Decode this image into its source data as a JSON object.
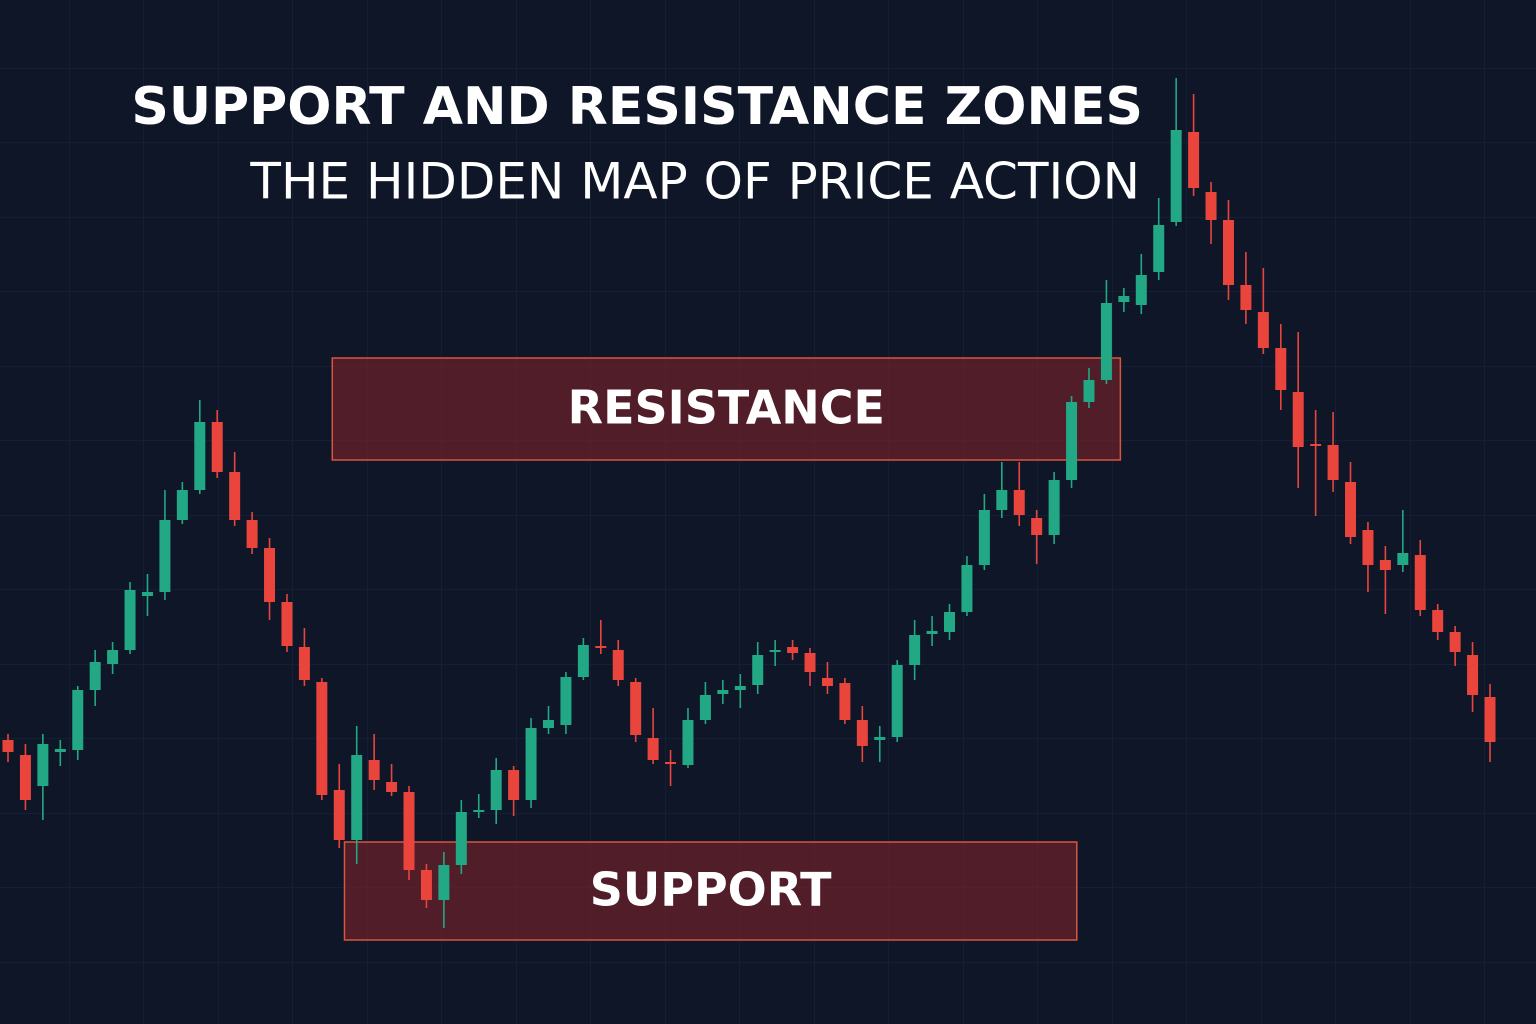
{
  "chart_data": {
    "type": "candlestick",
    "title": "SUPPORT AND RESISTANCE ZONES",
    "subtitle": "THE HIDDEN MAP OF PRICE ACTION",
    "up_color": "#22a884",
    "down_color": "#e9453d",
    "ylim": [
      0,
      1024
    ],
    "open": [
      284,
      269,
      238,
      272,
      274,
      334,
      360,
      374,
      428,
      432,
      504,
      534,
      602,
      552,
      504,
      476,
      422,
      377,
      342,
      234,
      184,
      264,
      242,
      232,
      154,
      124,
      159,
      212,
      214,
      254,
      224,
      296,
      299,
      347,
      378,
      374,
      342,
      286,
      262,
      259,
      304,
      330,
      334,
      339,
      372,
      377,
      371,
      346,
      341,
      304,
      284,
      287,
      359,
      390,
      392,
      412,
      459,
      514,
      534,
      506,
      489,
      544,
      622,
      644,
      722,
      719,
      752,
      802,
      892,
      832,
      804,
      739,
      712,
      676,
      632,
      580,
      579,
      542,
      494,
      464,
      459,
      469,
      414,
      392,
      369,
      327
    ],
    "high": [
      290,
      280,
      290,
      284,
      338,
      374,
      382,
      442,
      450,
      534,
      542,
      624,
      614,
      572,
      512,
      486,
      430,
      396,
      346,
      260,
      298,
      290,
      260,
      238,
      160,
      172,
      224,
      230,
      266,
      258,
      306,
      318,
      352,
      386,
      404,
      384,
      346,
      316,
      274,
      316,
      342,
      344,
      350,
      382,
      384,
      384,
      376,
      362,
      346,
      318,
      298,
      364,
      404,
      408,
      420,
      468,
      530,
      562,
      562,
      514,
      552,
      628,
      656,
      744,
      736,
      770,
      826,
      946,
      930,
      842,
      824,
      772,
      756,
      700,
      692,
      614,
      612,
      562,
      502,
      478,
      514,
      484,
      420,
      398,
      382,
      340
    ],
    "low": [
      262,
      214,
      204,
      258,
      264,
      318,
      350,
      370,
      408,
      424,
      500,
      530,
      546,
      498,
      470,
      404,
      372,
      338,
      224,
      176,
      160,
      234,
      228,
      144,
      116,
      96,
      150,
      206,
      200,
      208,
      216,
      290,
      290,
      344,
      370,
      338,
      282,
      260,
      238,
      256,
      300,
      320,
      316,
      330,
      358,
      364,
      338,
      330,
      300,
      262,
      262,
      282,
      344,
      378,
      384,
      408,
      454,
      506,
      498,
      460,
      480,
      536,
      616,
      640,
      712,
      710,
      744,
      798,
      828,
      780,
      724,
      700,
      670,
      614,
      536,
      508,
      532,
      480,
      432,
      410,
      452,
      408,
      384,
      358,
      312,
      262
    ],
    "close": [
      272,
      224,
      280,
      275,
      334,
      362,
      374,
      434,
      432,
      504,
      534,
      602,
      552,
      504,
      476,
      422,
      378,
      344,
      229,
      184,
      269,
      244,
      232,
      154,
      124,
      159,
      212,
      214,
      254,
      224,
      296,
      304,
      347,
      379,
      376,
      344,
      289,
      264,
      260,
      304,
      329,
      334,
      338,
      369,
      374,
      371,
      352,
      338,
      304,
      278,
      287,
      359,
      389,
      393,
      412,
      459,
      514,
      534,
      509,
      489,
      544,
      622,
      644,
      721,
      728,
      749,
      799,
      894,
      836,
      804,
      739,
      714,
      676,
      634,
      577,
      578,
      544,
      487,
      459,
      454,
      471,
      414,
      392,
      372,
      329,
      282
    ],
    "zones": [
      {
        "label": "RESISTANCE",
        "low": 564,
        "high": 666,
        "from": 18.6,
        "to": 63.8
      },
      {
        "label": "SUPPORT",
        "low": 84,
        "high": 182,
        "from": 19.3,
        "to": 61.3
      }
    ]
  }
}
